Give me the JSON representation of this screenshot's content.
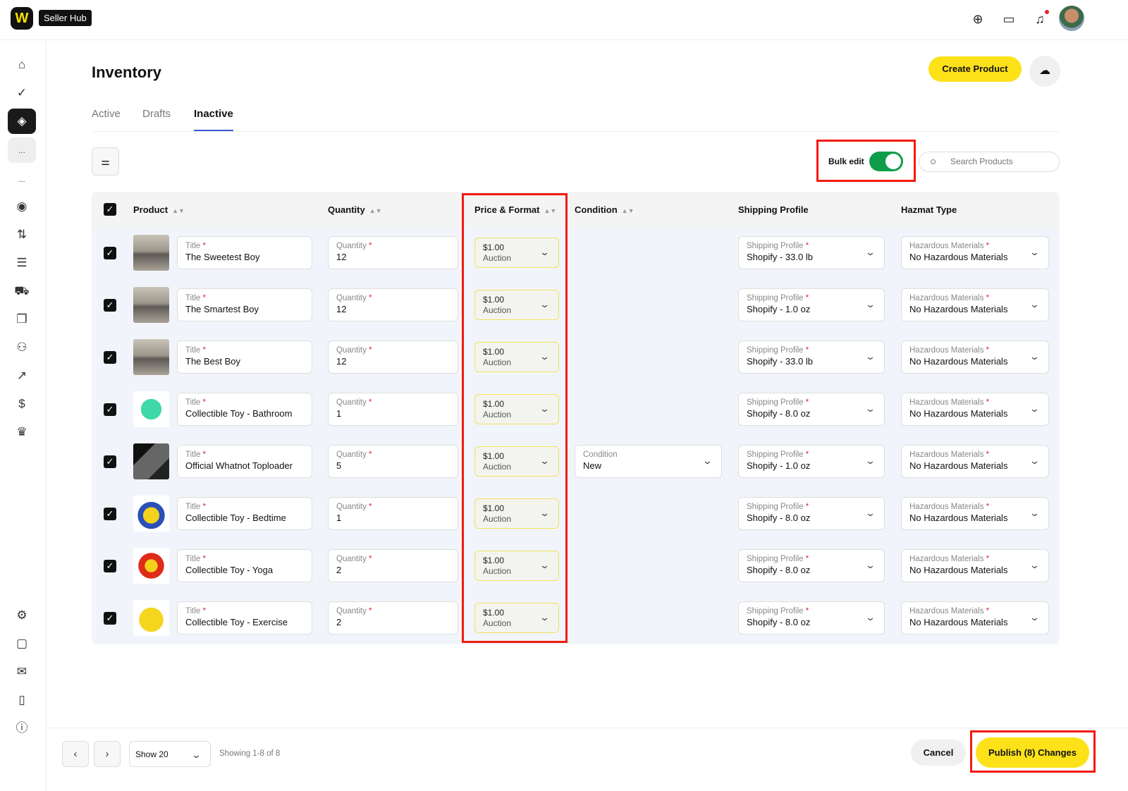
{
  "header": {
    "logo": "W",
    "app_name": "Seller Hub",
    "icons": [
      "plus-circle-icon",
      "message-icon",
      "bell-icon"
    ],
    "notification_dot": "#e3242b"
  },
  "sidebar": {
    "icons": [
      "home-icon",
      "shield-check-icon",
      "tag-icon",
      "more-icon",
      "dots-icon",
      "gauge-icon",
      "arrows-icon",
      "receipt-icon",
      "truck-icon",
      "box-icon",
      "users-icon",
      "chart-icon",
      "dollar-icon",
      "crown-icon"
    ],
    "bottom_icons": [
      "gear-icon",
      "chat-icon",
      "mail-icon",
      "book-icon",
      "info-icon"
    ],
    "more_label": "...",
    "dots_label": "..."
  },
  "page": {
    "title": "Inventory",
    "create_label": "Create Product",
    "tabs": [
      {
        "label": "Active"
      },
      {
        "label": "Drafts"
      },
      {
        "label": "Inactive",
        "selected": true
      }
    ]
  },
  "toolbar": {
    "bulk_edit_label": "Bulk edit",
    "bulk_edit_on": true,
    "search_placeholder": "Search Products"
  },
  "table": {
    "headers": {
      "product": "Product",
      "quantity": "Quantity",
      "price": "Price & Format",
      "condition": "Condition",
      "shipping": "Shipping Profile",
      "hazmat": "Hazmat Type"
    },
    "labels": {
      "title": "Title",
      "quantity": "Quantity",
      "condition": "Condition",
      "shipping": "Shipping Profile",
      "hazmat": "Hazardous Materials",
      "required": "*"
    },
    "rows": [
      {
        "title": "The Sweetest Boy",
        "quantity": "12",
        "price": "$1.00",
        "format": "Auction",
        "condition": "",
        "shipping": "Shopify - 33.0 lb",
        "hazmat": "No Hazardous Materials"
      },
      {
        "title": "The Smartest Boy",
        "quantity": "12",
        "price": "$1.00",
        "format": "Auction",
        "condition": "",
        "shipping": "Shopify - 1.0 oz",
        "hazmat": "No Hazardous Materials"
      },
      {
        "title": "The Best Boy",
        "quantity": "12",
        "price": "$1.00",
        "format": "Auction",
        "condition": "",
        "shipping": "Shopify - 33.0 lb",
        "hazmat": "No Hazardous Materials"
      },
      {
        "title": "Collectible Toy - Bathroom",
        "quantity": "1",
        "price": "$1.00",
        "format": "Auction",
        "condition": "",
        "shipping": "Shopify - 8.0 oz",
        "hazmat": "No Hazardous Materials"
      },
      {
        "title": "Official Whatnot Toploader",
        "quantity": "5",
        "price": "$1.00",
        "format": "Auction",
        "condition": "New",
        "shipping": "Shopify - 1.0 oz",
        "hazmat": "No Hazardous Materials"
      },
      {
        "title": "Collectible Toy - Bedtime",
        "quantity": "1",
        "price": "$1.00",
        "format": "Auction",
        "condition": "",
        "shipping": "Shopify - 8.0 oz",
        "hazmat": "No Hazardous Materials"
      },
      {
        "title": "Collectible Toy - Yoga",
        "quantity": "2",
        "price": "$1.00",
        "format": "Auction",
        "condition": "",
        "shipping": "Shopify - 8.0 oz",
        "hazmat": "No Hazardous Materials"
      },
      {
        "title": "Collectible Toy - Exercise",
        "quantity": "2",
        "price": "$1.00",
        "format": "Auction",
        "condition": "",
        "shipping": "Shopify - 8.0 oz",
        "hazmat": "No Hazardous Materials"
      }
    ]
  },
  "footer": {
    "page_size": "Show 20",
    "showing": "Showing 1-8 of 8",
    "cancel_label": "Cancel",
    "publish_label": "Publish (8) Changes"
  },
  "colors": {
    "accent": "#fde21a",
    "toggle": "#0f9d4a",
    "highlight": "#f21b0f",
    "tab_underline": "#3d5bd9"
  }
}
